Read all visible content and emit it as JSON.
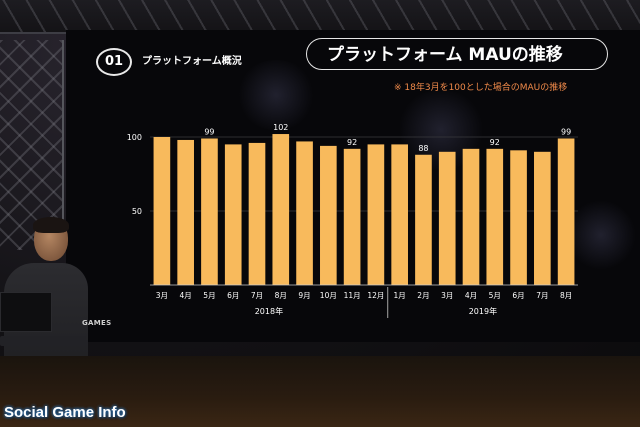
{
  "slide": {
    "badge": "01",
    "section_label": "プラットフォーム概況",
    "title": "プラットフォーム MAUの推移",
    "note": "※ 18年3月を100とした場合のMAUの推移",
    "sponsor_text": "GAMES",
    "watermark": "Social Game Info"
  },
  "colors": {
    "bar": "#f8ba5c",
    "text": "#ffffff",
    "note": "#f08a4a",
    "grid": "#3a3a3e"
  },
  "chart_data": {
    "type": "bar",
    "title": "プラットフォーム MAUの推移",
    "categories": [
      "3月",
      "4月",
      "5月",
      "6月",
      "7月",
      "8月",
      "9月",
      "10月",
      "11月",
      "12月",
      "1月",
      "2月",
      "3月",
      "4月",
      "5月",
      "6月",
      "7月",
      "8月"
    ],
    "values": [
      100,
      98,
      99,
      95,
      96,
      102,
      97,
      94,
      92,
      95,
      95,
      88,
      90,
      92,
      92,
      91,
      90,
      99
    ],
    "labeled_values": [
      {
        "index": 2,
        "label": "99"
      },
      {
        "index": 5,
        "label": "102"
      },
      {
        "index": 8,
        "label": "92"
      },
      {
        "index": 11,
        "label": "88"
      },
      {
        "index": 14,
        "label": "92"
      },
      {
        "index": 17,
        "label": "99"
      }
    ],
    "year_groups": [
      {
        "label": "2018年",
        "start": 0,
        "end": 9
      },
      {
        "label": "2019年",
        "start": 10,
        "end": 17
      }
    ],
    "yticks": [
      "100",
      "50"
    ],
    "ytick_values": [
      100,
      50
    ],
    "ylim": [
      0,
      110
    ],
    "grid": true,
    "xlabel": "",
    "ylabel": ""
  }
}
